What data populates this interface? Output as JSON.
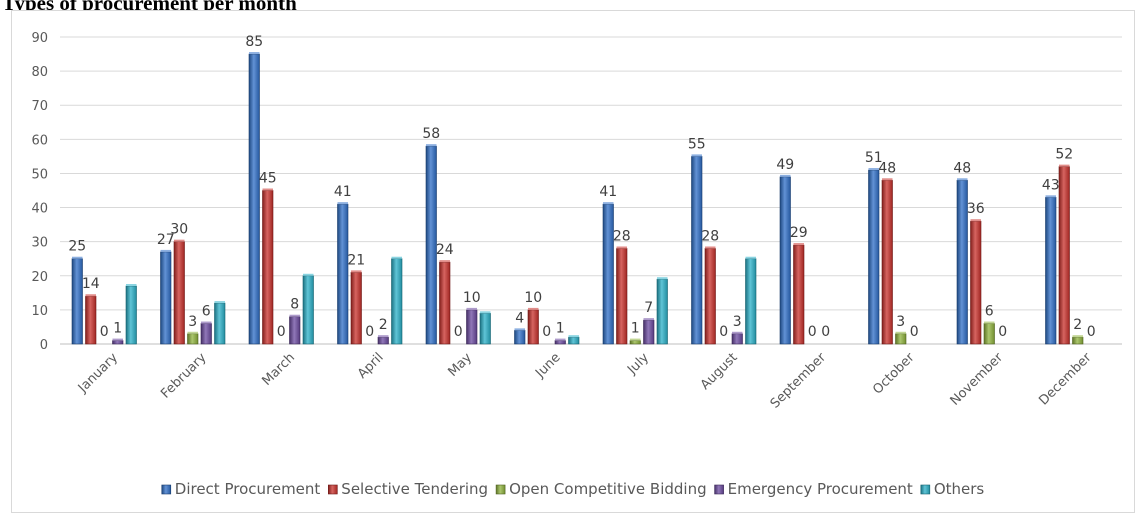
{
  "heading": "Types of procurement per month",
  "chart_data": {
    "type": "bar",
    "categories": [
      "January",
      "February",
      "March",
      "April",
      "May",
      "June",
      "July",
      "August",
      "September",
      "October",
      "November",
      "December"
    ],
    "series": [
      {
        "name": "Direct Procurement",
        "color": "#2e6ec7",
        "values": [
          25,
          27,
          85,
          41,
          58,
          4,
          41,
          55,
          49,
          51,
          48,
          43
        ]
      },
      {
        "name": "Selective Tendering",
        "color": "#c8302b",
        "values": [
          14,
          30,
          45,
          21,
          24,
          10,
          28,
          28,
          29,
          48,
          36,
          52
        ]
      },
      {
        "name": "Open Competitive Bidding",
        "color": "#8fb33c",
        "values": [
          0,
          3,
          0,
          0,
          0,
          0,
          1,
          0,
          0,
          3,
          6,
          2
        ]
      },
      {
        "name": "Emergency Procurement",
        "color": "#6b4aa0",
        "values": [
          1,
          6,
          8,
          2,
          10,
          1,
          7,
          3,
          0,
          0,
          0,
          0
        ]
      },
      {
        "name": "Others",
        "color": "#2ab0c8",
        "values": [
          17,
          12,
          20,
          25,
          9,
          2,
          19,
          25,
          0,
          0,
          0,
          0
        ]
      }
    ],
    "data_labels": {
      "Direct Procurement": [
        25,
        27,
        85,
        41,
        58,
        4,
        41,
        55,
        49,
        51,
        48,
        43
      ],
      "Selective Tendering": [
        14,
        30,
        45,
        21,
        24,
        10,
        28,
        28,
        29,
        48,
        36,
        52
      ],
      "Open Competitive Bidding": [
        0,
        3,
        0,
        0,
        0,
        0,
        1,
        0,
        0,
        3,
        6,
        2
      ],
      "Emergency Procurement": [
        1,
        6,
        8,
        2,
        10,
        1,
        7,
        3,
        0,
        0,
        0,
        0
      ]
    },
    "ylim": [
      0,
      90
    ],
    "yticks": [
      0,
      10,
      20,
      30,
      40,
      50,
      60,
      70,
      80,
      90
    ],
    "grid": true,
    "legend": "bottom"
  }
}
